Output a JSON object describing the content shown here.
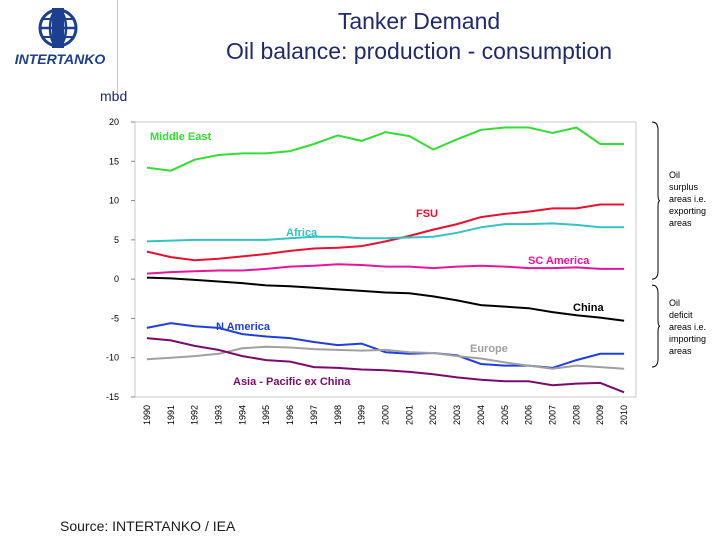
{
  "header": {
    "logo_text": "INTERTANKO",
    "title_line1": "Tanker Demand",
    "title_line2": "Oil balance: production - consumption"
  },
  "footer": {
    "source": "Source: INTERTANKO / IEA"
  },
  "colors": {
    "title": "#1f2a6e",
    "logo": "#1d3f8f"
  },
  "chart_data": {
    "type": "line",
    "ylabel": "mbd",
    "ylim": [
      -15,
      20
    ],
    "yticks": [
      20,
      15,
      10,
      5,
      0,
      -5,
      -10,
      -15
    ],
    "ytick_labels": [
      "20",
      "15",
      "10",
      "5",
      "0",
      "-5",
      "-10",
      "-15"
    ],
    "x": [
      "1990",
      "1991",
      "1992",
      "1993",
      "1994",
      "1995",
      "1996",
      "1997",
      "1998",
      "1999",
      "2000",
      "2001",
      "2002",
      "2003",
      "2004",
      "2005",
      "2006",
      "2007",
      "2008",
      "2009",
      "2010"
    ],
    "x_tick_labels": [
      "1990",
      "1991",
      "1992",
      "1993",
      "1994",
      "1995",
      "1996",
      "1997",
      "1998",
      "1999",
      "2000",
      "2001",
      "2002",
      "2003",
      "2004",
      "2005",
      "2006",
      "2007",
      "2008",
      "2009",
      "2010"
    ],
    "series": [
      {
        "name": "Middle East",
        "color": "#33dd33",
        "values": [
          14.2,
          13.8,
          15.2,
          15.8,
          16.0,
          16.0,
          16.3,
          17.2,
          18.3,
          17.6,
          18.7,
          18.2,
          16.5,
          17.8,
          19.0,
          19.3,
          19.3,
          18.6,
          19.3,
          17.2,
          17.2
        ]
      },
      {
        "name": "FSU",
        "color": "#e8102e",
        "values": [
          3.5,
          2.8,
          2.4,
          2.6,
          2.9,
          3.2,
          3.6,
          3.9,
          4.0,
          4.2,
          4.8,
          5.5,
          6.3,
          7.0,
          7.9,
          8.3,
          8.6,
          9.0,
          9.0,
          9.5,
          9.5
        ]
      },
      {
        "name": "Africa",
        "color": "#33c3c3",
        "values": [
          4.8,
          4.9,
          5.0,
          5.0,
          5.0,
          5.0,
          5.2,
          5.4,
          5.4,
          5.2,
          5.2,
          5.3,
          5.4,
          5.9,
          6.6,
          7.0,
          7.0,
          7.1,
          6.9,
          6.6,
          6.6
        ]
      },
      {
        "name": "SC America",
        "color": "#e8149a",
        "values": [
          0.7,
          0.9,
          1.0,
          1.1,
          1.1,
          1.3,
          1.6,
          1.7,
          1.9,
          1.8,
          1.6,
          1.6,
          1.4,
          1.6,
          1.7,
          1.6,
          1.4,
          1.4,
          1.5,
          1.3,
          1.3
        ]
      },
      {
        "name": "China",
        "color": "#000000",
        "values": [
          0.2,
          0.1,
          -0.1,
          -0.3,
          -0.5,
          -0.8,
          -0.9,
          -1.1,
          -1.3,
          -1.5,
          -1.7,
          -1.8,
          -2.2,
          -2.7,
          -3.3,
          -3.5,
          -3.7,
          -4.2,
          -4.6,
          -4.9,
          -5.3
        ]
      },
      {
        "name": "N America",
        "color": "#1e3ee0",
        "values": [
          -6.2,
          -5.6,
          -6.0,
          -6.2,
          -7.0,
          -7.3,
          -7.5,
          -8.0,
          -8.4,
          -8.2,
          -9.3,
          -9.5,
          -9.4,
          -9.7,
          -10.8,
          -11.0,
          -11.0,
          -11.3,
          -10.3,
          -9.5,
          -9.5
        ]
      },
      {
        "name": "Europe",
        "color": "#a0a0a0",
        "values": [
          -10.2,
          -10.0,
          -9.8,
          -9.5,
          -8.8,
          -8.6,
          -8.7,
          -8.9,
          -9.0,
          -9.1,
          -9.0,
          -9.3,
          -9.4,
          -9.8,
          -10.1,
          -10.6,
          -11.0,
          -11.4,
          -11.0,
          -11.2,
          -11.4
        ]
      },
      {
        "name": "Asia - Pacific ex China",
        "color": "#7a0b6e",
        "values": [
          -7.5,
          -7.8,
          -8.5,
          -9.0,
          -9.8,
          -10.3,
          -10.5,
          -11.2,
          -11.3,
          -11.5,
          -11.6,
          -11.8,
          -12.1,
          -12.5,
          -12.8,
          -13.0,
          -13.0,
          -13.5,
          -13.3,
          -13.2,
          -14.4
        ]
      }
    ],
    "annotations": {
      "surplus": [
        "Oil",
        "surplus",
        "areas i.e.",
        "exporting",
        "areas"
      ],
      "deficit": [
        "Oil",
        "deficit",
        "areas i.e.",
        "importing",
        "areas"
      ]
    }
  }
}
